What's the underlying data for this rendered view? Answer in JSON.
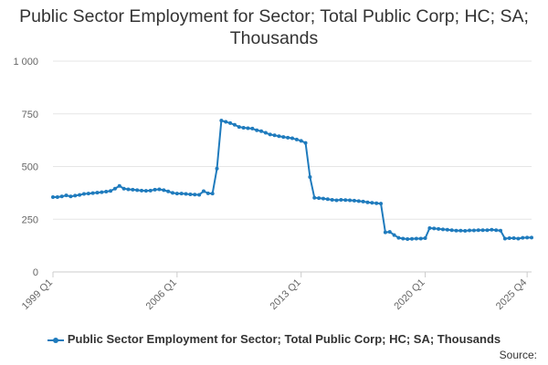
{
  "chart_data": {
    "type": "line",
    "title": "Public Sector Employment for Sector; Total Public Corp; HC; SA; Thousands",
    "xlabel": "",
    "ylabel": "",
    "ylim": [
      0,
      1000
    ],
    "yticks": [
      0,
      250,
      500,
      750,
      1000
    ],
    "ytick_labels": [
      "0",
      "250",
      "500",
      "750",
      "1 000"
    ],
    "xtick_labels": [
      {
        "label": "1999 Q1",
        "index": 0
      },
      {
        "label": "2006 Q1",
        "index": 28
      },
      {
        "label": "2013 Q1",
        "index": 56
      },
      {
        "label": "2020 Q1",
        "index": 84
      },
      {
        "label": "2025 Q4",
        "index": 107
      }
    ],
    "grid": "horizontal",
    "legend_position": "bottom",
    "series": [
      {
        "name": "Public Sector Employment for Sector; Total Public Corp; HC; SA; Thousands",
        "color": "#1f7bbd",
        "start": "1999 Q1",
        "values": [
          355,
          355,
          358,
          363,
          358,
          362,
          365,
          370,
          372,
          374,
          376,
          378,
          381,
          384,
          395,
          408,
          395,
          392,
          390,
          388,
          386,
          385,
          386,
          390,
          392,
          388,
          382,
          375,
          372,
          372,
          370,
          368,
          367,
          366,
          383,
          373,
          372,
          490,
          718,
          712,
          706,
          698,
          688,
          684,
          682,
          680,
          672,
          668,
          660,
          652,
          648,
          644,
          640,
          637,
          634,
          628,
          622,
          612,
          450,
          352,
          350,
          348,
          345,
          342,
          340,
          342,
          341,
          340,
          338,
          336,
          334,
          330,
          328,
          326,
          324,
          188,
          190,
          175,
          162,
          158,
          156,
          157,
          158,
          158,
          160,
          208,
          206,
          204,
          202,
          200,
          198,
          196,
          196,
          195,
          197,
          197,
          198,
          198,
          198,
          200,
          198,
          196,
          158,
          160,
          160,
          158,
          162,
          163,
          163
        ]
      }
    ]
  },
  "source_label": "Source:"
}
